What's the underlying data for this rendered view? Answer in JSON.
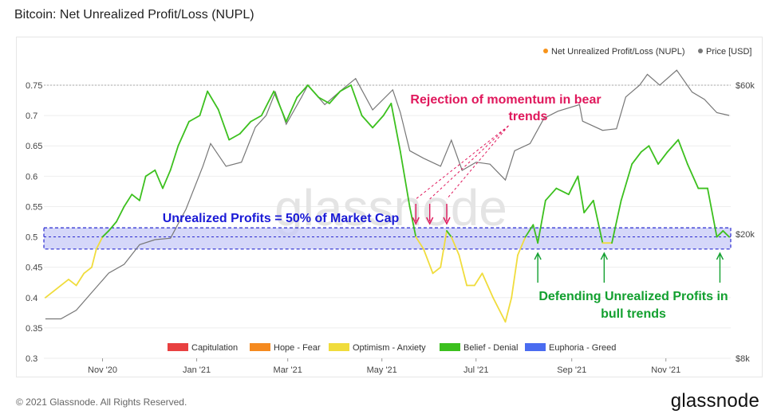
{
  "page": {
    "title": "Bitcoin: Net Unrealized Profit/Loss (NUPL)"
  },
  "footer": {
    "copyright": "© 2021 Glassnode. All Rights Reserved.",
    "brand": "glassnode"
  },
  "watermark": "glassnode",
  "colors": {
    "nupl_series": "#f7931a",
    "price_series": "#777777",
    "capitulation": "#e84040",
    "hope_fear": "#f58a1f",
    "optimism_anxiety": "#f0dc3c",
    "belief_denial": "#3cc01e",
    "euphoria_greed": "#4a6cf0",
    "band_fill": "#c7c9f7",
    "band_border": "#2a2ad0"
  },
  "chart_data": {
    "type": "line",
    "title": "Bitcoin: Net Unrealized Profit/Loss (NUPL)",
    "legend_position": "top-right",
    "top_legend": [
      {
        "name": "Net Unrealized Profit/Loss (NUPL)",
        "color": "#f7931a"
      },
      {
        "name": "Price [USD]",
        "color": "#777777"
      }
    ],
    "x_ticks": [
      "Nov '20",
      "Jan '21",
      "Mar '21",
      "May '21",
      "Jul '21",
      "Sep '21",
      "Nov '21"
    ],
    "x_range": [
      "2020-09-24",
      "2021-12-13"
    ],
    "y_left": {
      "ticks": [
        "0.3",
        "0.35",
        "0.4",
        "0.45",
        "0.5",
        "0.55",
        "0.6",
        "0.65",
        "0.7",
        "0.75"
      ],
      "range": [
        0.3,
        0.75
      ]
    },
    "y_right": {
      "ticks": [
        "$8k",
        "$20k",
        "$60k"
      ],
      "scale": "log",
      "range": [
        8000,
        60000
      ]
    },
    "grid": true,
    "zone_legend": [
      "Capitulation",
      "Hope - Fear",
      "Optimism - Anxiety",
      "Belief - Denial",
      "Euphoria - Greed"
    ],
    "band": {
      "y_range": [
        0.48,
        0.515
      ],
      "label": "Unrealized Profits = 50% of Market Cap"
    },
    "annotations": {
      "rejection": [
        "Rejection of momentum in bear",
        "trends"
      ],
      "defending": [
        "Defending Unrealized Profits in",
        "bull trends"
      ]
    },
    "series": [
      {
        "name": "Net Unrealized Profit/Loss (NUPL)",
        "axis": "left",
        "points": [
          [
            "2020-09-25",
            0.4
          ],
          [
            "2020-09-30",
            0.41
          ],
          [
            "2020-10-05",
            0.42
          ],
          [
            "2020-10-10",
            0.43
          ],
          [
            "2020-10-15",
            0.42
          ],
          [
            "2020-10-20",
            0.44
          ],
          [
            "2020-10-25",
            0.45
          ],
          [
            "2020-10-28",
            0.48
          ],
          [
            "2020-11-01",
            0.5
          ],
          [
            "2020-11-05",
            0.51
          ],
          [
            "2020-11-10",
            0.525
          ],
          [
            "2020-11-15",
            0.55
          ],
          [
            "2020-11-20",
            0.57
          ],
          [
            "2020-11-25",
            0.56
          ],
          [
            "2020-11-29",
            0.6
          ],
          [
            "2020-12-05",
            0.61
          ],
          [
            "2020-12-10",
            0.58
          ],
          [
            "2020-12-15",
            0.61
          ],
          [
            "2020-12-20",
            0.65
          ],
          [
            "2020-12-27",
            0.69
          ],
          [
            "2021-01-03",
            0.7
          ],
          [
            "2021-01-08",
            0.74
          ],
          [
            "2021-01-15",
            0.71
          ],
          [
            "2021-01-22",
            0.66
          ],
          [
            "2021-01-29",
            0.67
          ],
          [
            "2021-02-05",
            0.69
          ],
          [
            "2021-02-12",
            0.7
          ],
          [
            "2021-02-20",
            0.74
          ],
          [
            "2021-02-28",
            0.69
          ],
          [
            "2021-03-07",
            0.73
          ],
          [
            "2021-03-14",
            0.75
          ],
          [
            "2021-03-21",
            0.73
          ],
          [
            "2021-03-28",
            0.72
          ],
          [
            "2021-04-04",
            0.74
          ],
          [
            "2021-04-11",
            0.75
          ],
          [
            "2021-04-18",
            0.7
          ],
          [
            "2021-04-25",
            0.68
          ],
          [
            "2021-05-02",
            0.7
          ],
          [
            "2021-05-07",
            0.72
          ],
          [
            "2021-05-13",
            0.64
          ],
          [
            "2021-05-19",
            0.55
          ],
          [
            "2021-05-23",
            0.5
          ],
          [
            "2021-05-28",
            0.48
          ],
          [
            "2021-06-03",
            0.44
          ],
          [
            "2021-06-08",
            0.45
          ],
          [
            "2021-06-12",
            0.51
          ],
          [
            "2021-06-15",
            0.5
          ],
          [
            "2021-06-20",
            0.47
          ],
          [
            "2021-06-25",
            0.42
          ],
          [
            "2021-06-30",
            0.42
          ],
          [
            "2021-07-05",
            0.44
          ],
          [
            "2021-07-12",
            0.4
          ],
          [
            "2021-07-20",
            0.36
          ],
          [
            "2021-07-24",
            0.4
          ],
          [
            "2021-07-28",
            0.47
          ],
          [
            "2021-08-02",
            0.5
          ],
          [
            "2021-08-07",
            0.52
          ],
          [
            "2021-08-10",
            0.49
          ],
          [
            "2021-08-15",
            0.56
          ],
          [
            "2021-08-22",
            0.58
          ],
          [
            "2021-08-30",
            0.57
          ],
          [
            "2021-09-05",
            0.6
          ],
          [
            "2021-09-09",
            0.54
          ],
          [
            "2021-09-15",
            0.56
          ],
          [
            "2021-09-21",
            0.49
          ],
          [
            "2021-09-27",
            0.49
          ],
          [
            "2021-10-03",
            0.56
          ],
          [
            "2021-10-10",
            0.62
          ],
          [
            "2021-10-16",
            0.64
          ],
          [
            "2021-10-21",
            0.65
          ],
          [
            "2021-10-27",
            0.62
          ],
          [
            "2021-11-02",
            0.64
          ],
          [
            "2021-11-09",
            0.66
          ],
          [
            "2021-11-15",
            0.62
          ],
          [
            "2021-11-22",
            0.58
          ],
          [
            "2021-11-28",
            0.58
          ],
          [
            "2021-12-04",
            0.5
          ],
          [
            "2021-12-08",
            0.51
          ],
          [
            "2021-12-12",
            0.5
          ]
        ]
      },
      {
        "name": "Price [USD]",
        "axis": "right",
        "points": [
          [
            "2020-09-25",
            10700
          ],
          [
            "2020-10-05",
            10700
          ],
          [
            "2020-10-15",
            11400
          ],
          [
            "2020-10-25",
            13000
          ],
          [
            "2020-11-05",
            15000
          ],
          [
            "2020-11-15",
            16000
          ],
          [
            "2020-11-25",
            18500
          ],
          [
            "2020-12-05",
            19200
          ],
          [
            "2020-12-15",
            19400
          ],
          [
            "2020-12-25",
            24000
          ],
          [
            "2021-01-05",
            33000
          ],
          [
            "2021-01-10",
            39000
          ],
          [
            "2021-01-20",
            33000
          ],
          [
            "2021-01-30",
            34000
          ],
          [
            "2021-02-08",
            44000
          ],
          [
            "2021-02-15",
            48000
          ],
          [
            "2021-02-21",
            57000
          ],
          [
            "2021-02-28",
            45000
          ],
          [
            "2021-03-10",
            55000
          ],
          [
            "2021-03-14",
            60000
          ],
          [
            "2021-03-25",
            52000
          ],
          [
            "2021-04-05",
            58000
          ],
          [
            "2021-04-14",
            63000
          ],
          [
            "2021-04-25",
            50000
          ],
          [
            "2021-05-08",
            58000
          ],
          [
            "2021-05-13",
            49000
          ],
          [
            "2021-05-19",
            37000
          ],
          [
            "2021-05-28",
            35000
          ],
          [
            "2021-06-08",
            33000
          ],
          [
            "2021-06-15",
            40000
          ],
          [
            "2021-06-22",
            32000
          ],
          [
            "2021-07-01",
            34000
          ],
          [
            "2021-07-10",
            33500
          ],
          [
            "2021-07-20",
            29800
          ],
          [
            "2021-07-26",
            37000
          ],
          [
            "2021-08-05",
            39000
          ],
          [
            "2021-08-14",
            47000
          ],
          [
            "2021-08-23",
            49500
          ],
          [
            "2021-09-06",
            52000
          ],
          [
            "2021-09-08",
            46000
          ],
          [
            "2021-09-21",
            43000
          ],
          [
            "2021-09-30",
            43500
          ],
          [
            "2021-10-06",
            55000
          ],
          [
            "2021-10-15",
            60000
          ],
          [
            "2021-10-20",
            65000
          ],
          [
            "2021-10-28",
            60000
          ],
          [
            "2021-11-08",
            67000
          ],
          [
            "2021-11-18",
            57000
          ],
          [
            "2021-11-26",
            54000
          ],
          [
            "2021-12-04",
            49000
          ],
          [
            "2021-12-12",
            48000
          ]
        ]
      }
    ]
  }
}
